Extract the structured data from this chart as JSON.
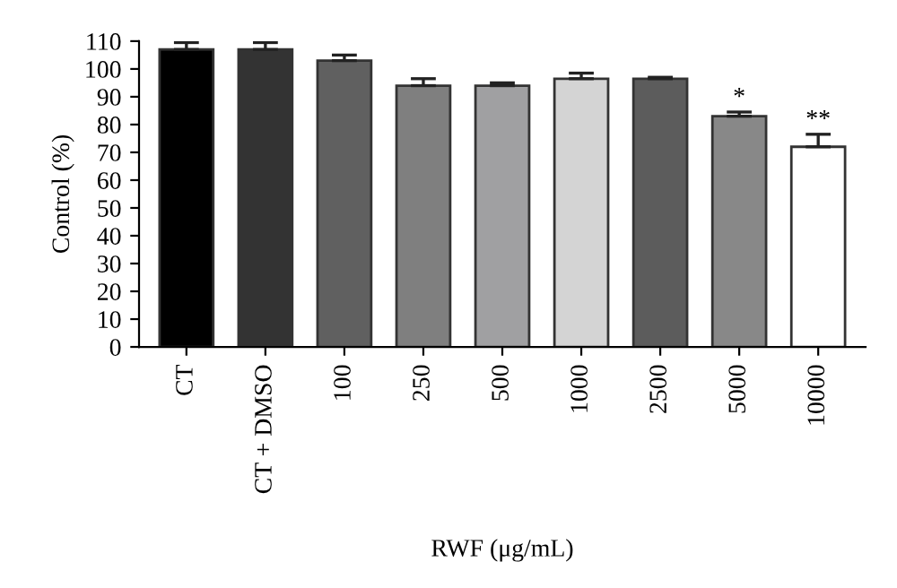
{
  "chart_data": {
    "type": "bar",
    "xlabel": "RWF (μg/mL)",
    "ylabel": "Control (%)",
    "categories": [
      "CT",
      "CT + DMSO",
      "100",
      "250",
      "500",
      "1000",
      "2500",
      "5000",
      "10000"
    ],
    "values": [
      107,
      107,
      103,
      94,
      94,
      96.5,
      96.5,
      83,
      72
    ],
    "errors": [
      [
        107,
        109.5
      ],
      [
        107,
        109.5
      ],
      [
        103,
        105
      ],
      [
        94,
        96.5
      ],
      [
        94,
        95
      ],
      [
        96.5,
        98.5
      ],
      [
        96.5,
        97
      ],
      [
        83,
        84.5
      ],
      [
        72,
        76.5
      ]
    ],
    "colors": [
      "#000000",
      "#333333",
      "#606060",
      "#7f7f7f",
      "#a0a0a2",
      "#d4d4d4",
      "#5c5c5c",
      "#888888",
      "#ffffff"
    ],
    "annotations": [
      {
        "text": "*",
        "x": "5000",
        "y": 84.5
      },
      {
        "text": "**",
        "x": "10000",
        "y": 76.5
      }
    ],
    "ylim": [
      0,
      110
    ],
    "yticks": [
      0,
      10,
      20,
      30,
      40,
      50,
      60,
      70,
      80,
      90,
      100,
      110
    ],
    "grid": false,
    "legend": false
  }
}
